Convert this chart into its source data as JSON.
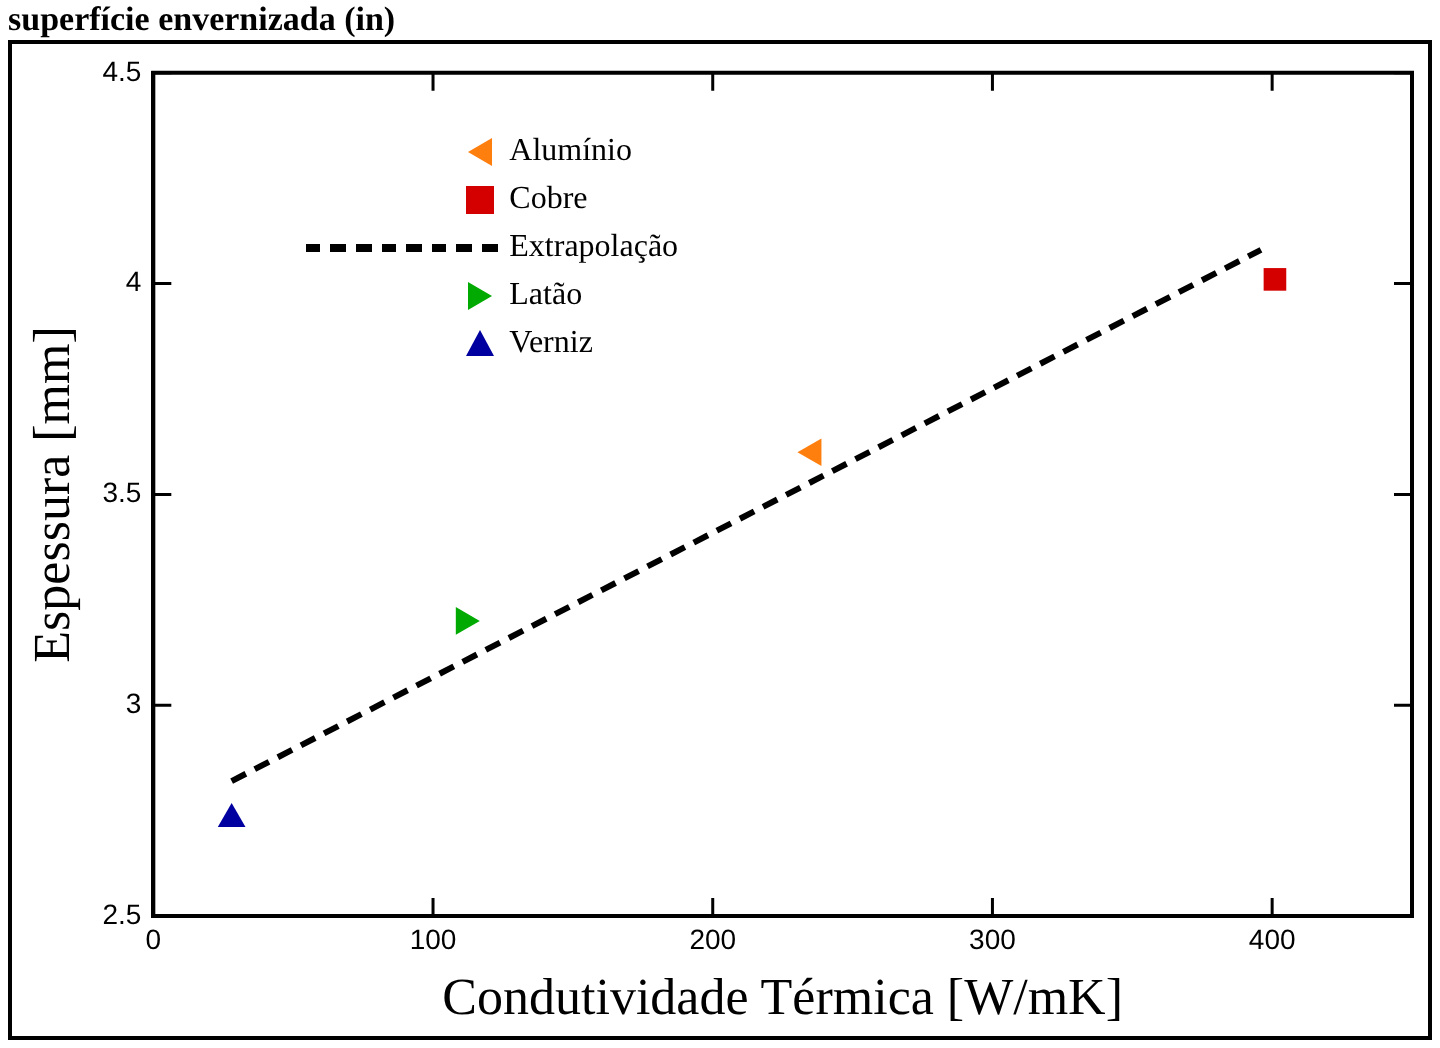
{
  "chart_data": {
    "type": "scatter",
    "title": "superfície envernizada (in)",
    "xlabel": "Condutividade Térmica [W/mK]",
    "ylabel": "Espessura [mm]",
    "xlim": [
      0,
      450
    ],
    "ylim": [
      2.5,
      4.5
    ],
    "xticks": [
      0,
      100,
      200,
      300,
      400
    ],
    "yticks": [
      2.5,
      3,
      3.5,
      4,
      4.5
    ],
    "grid": false,
    "legend": "top left",
    "series": [
      {
        "name": "Alumínio",
        "color": "#ff7f0e",
        "marker": "triangle-left",
        "x": [
          236
        ],
        "values": [
          3.6
        ]
      },
      {
        "name": "Cobre",
        "color": "#d40000",
        "marker": "square",
        "x": [
          401
        ],
        "values": [
          4.01
        ]
      },
      {
        "name": "Extrapolação",
        "type": "line",
        "color": "#000000",
        "line_style": "dashed",
        "marker": "none",
        "x": [
          28,
          396
        ],
        "values": [
          2.82,
          4.08
        ]
      },
      {
        "name": "Latão",
        "color": "#00aa00",
        "marker": "triangle-right",
        "x": [
          111
        ],
        "values": [
          3.2
        ]
      },
      {
        "name": "Verniz",
        "color": "#0000a0",
        "marker": "triangle",
        "x": [
          28
        ],
        "values": [
          2.73
        ]
      }
    ]
  }
}
